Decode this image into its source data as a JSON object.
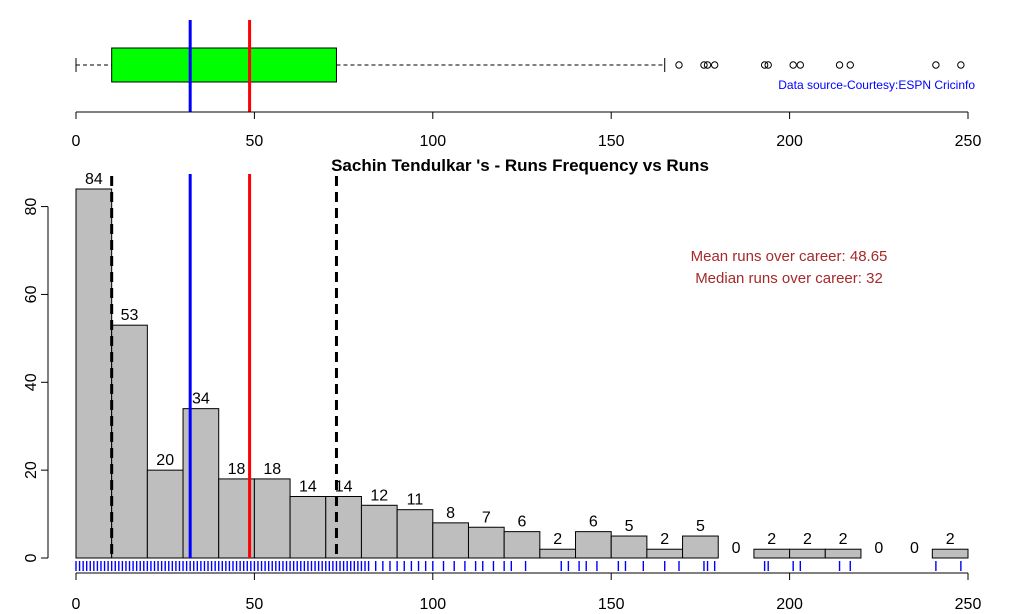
{
  "chart_data": {
    "type": "bar",
    "title": "Sachin Tendulkar 's  - Runs Frequency vs Runs",
    "source_note": "Data source-Courtesy:ESPN Cricinfo",
    "annotations": {
      "mean": "Mean runs over career: 48.65",
      "median": "Median runs over career: 32"
    },
    "colors": {
      "histogram_fill": "#bebebe",
      "box_fill": "#00ff00",
      "median_line": "#0000ff",
      "mean_line": "#ff0000",
      "quartile_lines": "#000000",
      "rug": "#0000ff",
      "annotation_text": "#a52a2a",
      "source_text": "#0000ff"
    },
    "histogram": {
      "bin_width": 10,
      "bin_starts": [
        0,
        10,
        20,
        30,
        40,
        50,
        60,
        70,
        80,
        90,
        100,
        110,
        120,
        130,
        140,
        150,
        160,
        170,
        180,
        190,
        200,
        210,
        220,
        230,
        240
      ],
      "counts": [
        84,
        53,
        20,
        34,
        18,
        18,
        14,
        14,
        12,
        11,
        8,
        7,
        6,
        2,
        6,
        5,
        2,
        5,
        0,
        2,
        2,
        2,
        0,
        0,
        2
      ],
      "x_ticks": [
        "0",
        "50",
        "100",
        "150",
        "200",
        "250"
      ],
      "y_ticks": [
        "0",
        "20",
        "40",
        "60",
        "80"
      ],
      "xlim": [
        0,
        250
      ],
      "ylim": [
        0,
        84
      ]
    },
    "boxplot": {
      "whisker_low": 0,
      "q1": 10,
      "median": 32,
      "mean": 48.65,
      "q3": 73,
      "whisker_high": 165,
      "outliers": [
        169,
        176,
        177,
        179,
        193,
        194,
        201,
        203,
        214,
        217,
        241,
        248
      ],
      "x_ticks": [
        "0",
        "50",
        "100",
        "150",
        "200",
        "250"
      ]
    },
    "rug_values": [
      0,
      1,
      2,
      3,
      4,
      5,
      6,
      7,
      8,
      9,
      10,
      11,
      12,
      13,
      14,
      15,
      16,
      17,
      18,
      19,
      20,
      21,
      22,
      23,
      24,
      25,
      26,
      27,
      28,
      29,
      30,
      31,
      32,
      33,
      34,
      35,
      36,
      37,
      38,
      39,
      40,
      41,
      42,
      43,
      44,
      45,
      46,
      47,
      48,
      49,
      50,
      51,
      52,
      53,
      54,
      55,
      56,
      57,
      58,
      59,
      60,
      61,
      62,
      63,
      64,
      65,
      66,
      67,
      68,
      69,
      70,
      71,
      72,
      73,
      74,
      75,
      76,
      77,
      78,
      79,
      80,
      81,
      82,
      84,
      86,
      88,
      90,
      92,
      94,
      96,
      98,
      100,
      103,
      106,
      109,
      112,
      114,
      117,
      120,
      122,
      126,
      136,
      138,
      141,
      143,
      146,
      152,
      154,
      159,
      165,
      169,
      176,
      177,
      179,
      193,
      194,
      201,
      203,
      214,
      217,
      241,
      248
    ]
  }
}
